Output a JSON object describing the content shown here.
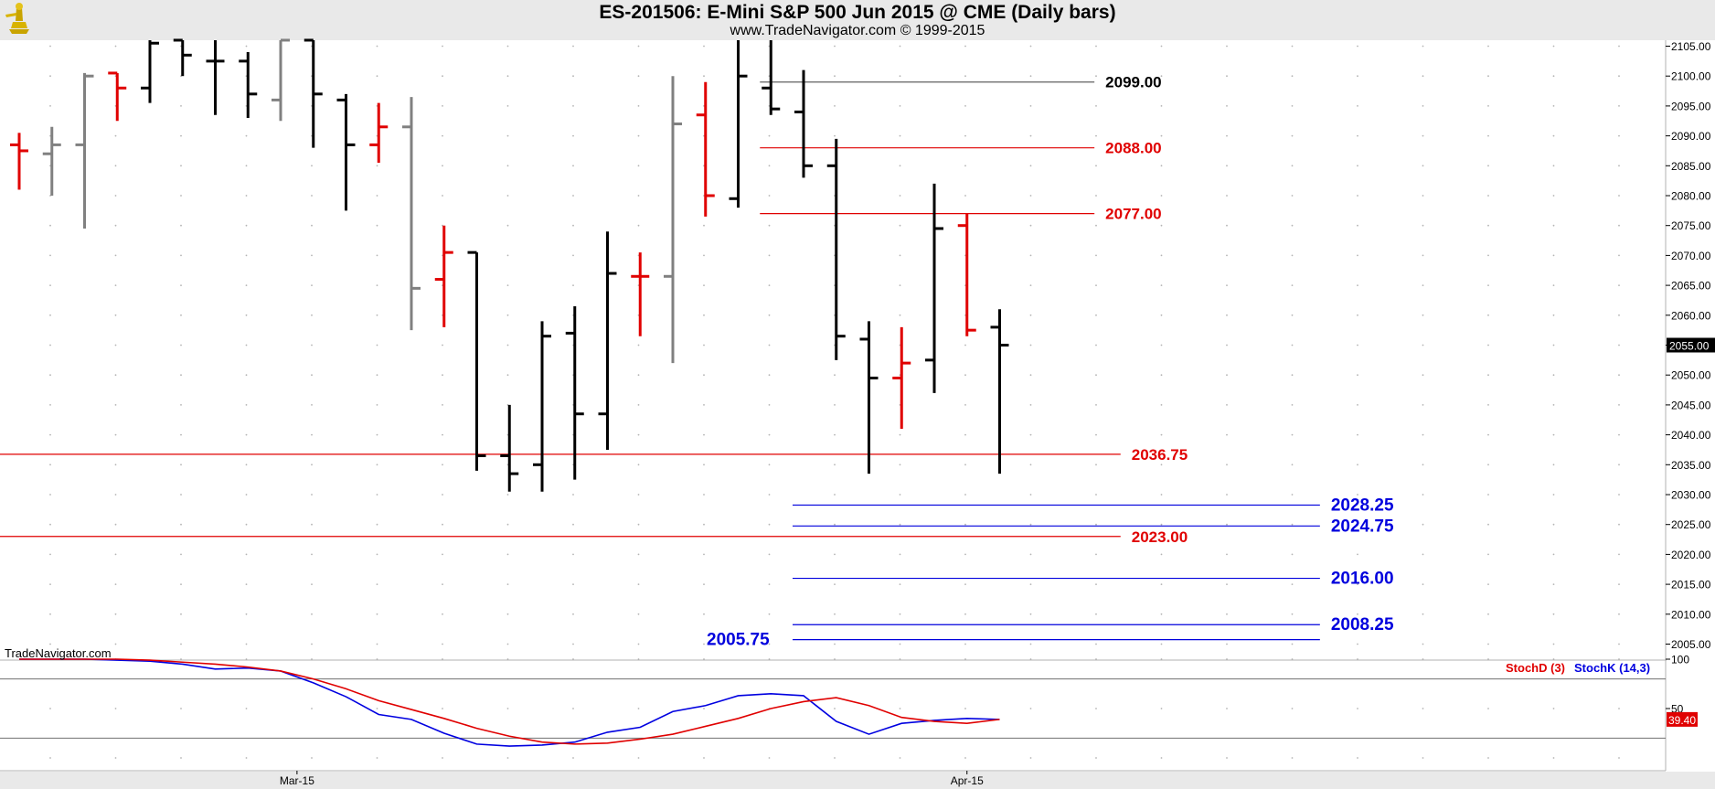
{
  "header": {
    "title": "ES-201506:  E-Mini S&P 500 Jun 2015 @ CME  (Daily bars)",
    "subtitle": "www.TradeNavigator.com © 1999-2015",
    "logo_icon": "trade-navigator-logo-icon",
    "watermark": "TradeNavigator.com"
  },
  "colors": {
    "up_bar": "#000000",
    "down_bar": "#e00000",
    "neutral_bar": "#808080",
    "resistance_line": "#e00000",
    "target_line": "#0000dd",
    "stoch_d": "#e00000",
    "stoch_k": "#0000e0",
    "current_price_bg": "#000000"
  },
  "chart_data": [
    {
      "type": "ohlc",
      "title": "ES-201506:  E-Mini S&P 500 Jun 2015 @ CME  (Daily bars)",
      "ylim": [
        2000,
        2106
      ],
      "y_ticks": [
        2005,
        2010,
        2015,
        2020,
        2025,
        2030,
        2035,
        2040,
        2045,
        2050,
        2055,
        2060,
        2065,
        2070,
        2075,
        2080,
        2085,
        2090,
        2095,
        2100,
        2105
      ],
      "x_labels": [
        {
          "label": "Mar-15",
          "bar": 8.5
        },
        {
          "label": "Apr-15",
          "bar": 29
        }
      ],
      "bars": [
        {
          "i": 0,
          "o": 2088.5,
          "h": 2090.5,
          "l": 2081.0,
          "c": 2087.5,
          "color": "red"
        },
        {
          "i": 1,
          "o": 2087.0,
          "h": 2091.5,
          "l": 2080.0,
          "c": 2088.5,
          "color": "gray"
        },
        {
          "i": 2,
          "o": 2088.5,
          "h": 2100.5,
          "l": 2074.5,
          "c": 2100.0,
          "color": "gray"
        },
        {
          "i": 3,
          "o": 2100.5,
          "h": 2100.5,
          "l": 2092.5,
          "c": 2098.0,
          "color": "red"
        },
        {
          "i": 4,
          "o": 2098.0,
          "h": 2106.0,
          "l": 2095.5,
          "c": 2105.5,
          "color": "black"
        },
        {
          "i": 5,
          "o": 2106.0,
          "h": 2106.0,
          "l": 2100.0,
          "c": 2103.5,
          "color": "black"
        },
        {
          "i": 6,
          "o": 2102.5,
          "h": 2106.0,
          "l": 2093.5,
          "c": 2102.5,
          "color": "black"
        },
        {
          "i": 7,
          "o": 2102.5,
          "h": 2104.0,
          "l": 2093.0,
          "c": 2097.0,
          "color": "black"
        },
        {
          "i": 8,
          "o": 2096.0,
          "h": 2106.0,
          "l": 2092.5,
          "c": 2106.0,
          "color": "gray"
        },
        {
          "i": 9,
          "o": 2106.0,
          "h": 2106.0,
          "l": 2088.0,
          "c": 2097.0,
          "color": "black"
        },
        {
          "i": 10,
          "o": 2096.0,
          "h": 2097.0,
          "l": 2077.5,
          "c": 2088.5,
          "color": "black"
        },
        {
          "i": 11,
          "o": 2088.5,
          "h": 2095.5,
          "l": 2085.5,
          "c": 2091.5,
          "color": "red"
        },
        {
          "i": 12,
          "o": 2091.5,
          "h": 2096.5,
          "l": 2057.5,
          "c": 2064.5,
          "color": "gray"
        },
        {
          "i": 13,
          "o": 2066.0,
          "h": 2075.0,
          "l": 2058.0,
          "c": 2070.5,
          "color": "red"
        },
        {
          "i": 14,
          "o": 2070.5,
          "h": 2070.5,
          "l": 2034.0,
          "c": 2036.5,
          "color": "black"
        },
        {
          "i": 15,
          "o": 2036.5,
          "h": 2045.0,
          "l": 2030.5,
          "c": 2033.5,
          "color": "black"
        },
        {
          "i": 16,
          "o": 2035.0,
          "h": 2059.0,
          "l": 2030.5,
          "c": 2056.5,
          "color": "black"
        },
        {
          "i": 17,
          "o": 2057.0,
          "h": 2061.5,
          "l": 2032.5,
          "c": 2043.5,
          "color": "black"
        },
        {
          "i": 18,
          "o": 2043.5,
          "h": 2074.0,
          "l": 2037.5,
          "c": 2067.0,
          "color": "black"
        },
        {
          "i": 19,
          "o": 2066.5,
          "h": 2070.5,
          "l": 2056.5,
          "c": 2066.5,
          "color": "red"
        },
        {
          "i": 20,
          "o": 2066.5,
          "h": 2100.0,
          "l": 2052.0,
          "c": 2092.0,
          "color": "gray"
        },
        {
          "i": 21,
          "o": 2093.5,
          "h": 2099.0,
          "l": 2076.5,
          "c": 2080.0,
          "color": "red"
        },
        {
          "i": 22,
          "o": 2079.5,
          "h": 2106.0,
          "l": 2078.0,
          "c": 2100.0,
          "color": "black"
        },
        {
          "i": 23,
          "o": 2098.0,
          "h": 2106.0,
          "l": 2093.5,
          "c": 2094.5,
          "color": "black"
        },
        {
          "i": 24,
          "o": 2094.0,
          "h": 2101.0,
          "l": 2083.0,
          "c": 2085.0,
          "color": "black"
        },
        {
          "i": 25,
          "o": 2085.0,
          "h": 2089.5,
          "l": 2052.5,
          "c": 2056.5,
          "color": "black"
        },
        {
          "i": 26,
          "o": 2056.0,
          "h": 2059.0,
          "l": 2033.5,
          "c": 2049.5,
          "color": "black"
        },
        {
          "i": 27,
          "o": 2049.5,
          "h": 2058.0,
          "l": 2041.0,
          "c": 2052.0,
          "color": "red"
        },
        {
          "i": 28,
          "o": 2052.5,
          "h": 2082.0,
          "l": 2047.0,
          "c": 2074.5,
          "color": "black"
        },
        {
          "i": 29,
          "o": 2075.0,
          "h": 2077.0,
          "l": 2056.5,
          "c": 2057.5,
          "color": "red"
        },
        {
          "i": 30,
          "o": 2058.0,
          "h": 2061.0,
          "l": 2033.5,
          "c": 2055.0,
          "color": "black"
        }
      ],
      "current_price": "2055.00",
      "levels": [
        {
          "value": 2099.0,
          "label": "2099.00",
          "color": "#000000",
          "line": "gray",
          "from_bar": 23,
          "to_bar": 32.9,
          "label_side": "right"
        },
        {
          "value": 2088.0,
          "label": "2088.00",
          "color": "#e00000",
          "line": "red",
          "from_bar": 23,
          "to_bar": 32.9,
          "label_side": "right"
        },
        {
          "value": 2077.0,
          "label": "2077.00",
          "color": "#e00000",
          "line": "red",
          "from_bar": 23,
          "to_bar": 32.9,
          "label_side": "right"
        },
        {
          "value": 2036.75,
          "label": "2036.75",
          "color": "#e00000",
          "line": "red",
          "from_bar": -0.5,
          "to_bar": 33.7,
          "label_side": "right"
        },
        {
          "value": 2028.25,
          "label": "2028.25",
          "color": "#0000dd",
          "line": "blue",
          "from_bar": 24,
          "to_bar": 39.8,
          "label_side": "right"
        },
        {
          "value": 2024.75,
          "label": "2024.75",
          "color": "#0000dd",
          "line": "blue",
          "from_bar": 24,
          "to_bar": 39.8,
          "label_side": "right"
        },
        {
          "value": 2023.0,
          "label": "2023.00",
          "color": "#e00000",
          "line": "red",
          "from_bar": -0.5,
          "to_bar": 33.7,
          "label_side": "right"
        },
        {
          "value": 2016.0,
          "label": "2016.00",
          "color": "#0000dd",
          "line": "blue",
          "from_bar": 24,
          "to_bar": 39.8,
          "label_side": "right"
        },
        {
          "value": 2008.25,
          "label": "2008.25",
          "color": "#0000dd",
          "line": "blue",
          "from_bar": 24,
          "to_bar": 39.8,
          "label_side": "right"
        },
        {
          "value": 2005.75,
          "label": "2005.75",
          "color": "#0000dd",
          "line": "blue",
          "from_bar": 24,
          "to_bar": 39.8,
          "label_side": "left"
        }
      ]
    },
    {
      "type": "line",
      "title": "",
      "ylim": [
        0,
        100
      ],
      "y_ticks": [
        {
          "value": 100,
          "label": "100"
        },
        {
          "value": 50,
          "label": "50"
        }
      ],
      "hlines": [
        80,
        20
      ],
      "legend": [
        "StochD (3)",
        "StochK (14,3)"
      ],
      "series": [
        {
          "name": "StochD (3)",
          "values": [
            100,
            100,
            100,
            100,
            99,
            97,
            95,
            92,
            88,
            80,
            70,
            58,
            49,
            40,
            30,
            22,
            16,
            14,
            15,
            19,
            24,
            32,
            40,
            50,
            57,
            61,
            53,
            41,
            37,
            35,
            39
          ]
        },
        {
          "name": "StochK (14,3)",
          "values": [
            100,
            100,
            100,
            99,
            98,
            95,
            90,
            91,
            88,
            76,
            62,
            44,
            39,
            25,
            14,
            12,
            13,
            16,
            26,
            31,
            47,
            53,
            63,
            65,
            63,
            37,
            24,
            35,
            38,
            40,
            39
          ]
        }
      ],
      "current_value": "39.40"
    }
  ]
}
